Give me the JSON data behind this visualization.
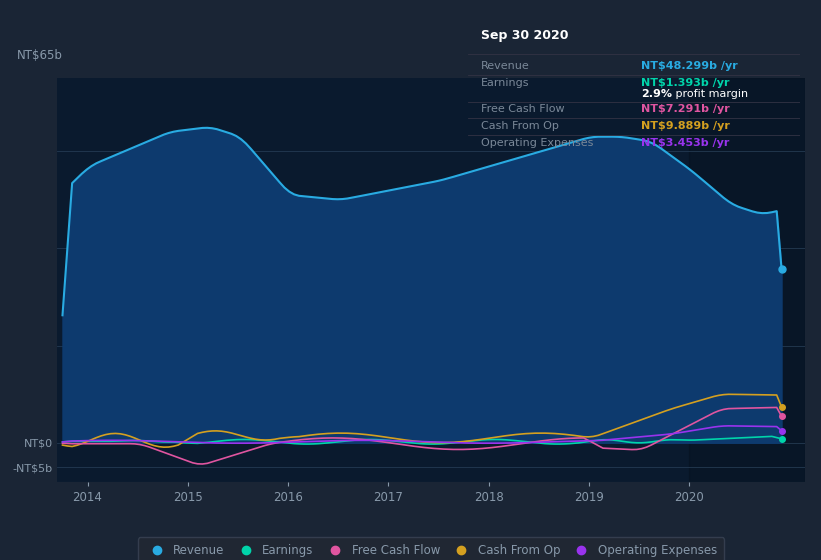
{
  "bg_color": "#1a2535",
  "plot_bg_color": "#0d1f35",
  "plot_bg_color2": "#0a1a2e",
  "grid_color": "#243a52",
  "text_color": "#8899aa",
  "xlim": [
    2013.7,
    2021.15
  ],
  "ylim": [
    -8,
    75
  ],
  "x_ticks": [
    2014,
    2015,
    2016,
    2017,
    2018,
    2019,
    2020
  ],
  "series_colors": {
    "revenue": "#29abe2",
    "revenue_fill": "#0d3a6e",
    "earnings": "#00d4aa",
    "free_cash_flow": "#e055a0",
    "cash_from_op": "#d4a020",
    "operating_expenses": "#9933ee"
  },
  "tooltip": {
    "title": "Sep 30 2020",
    "revenue_val": "NT$48.299b /yr",
    "earnings_val": "NT$1.393b /yr",
    "profit_margin": "2.9%",
    "fcf_val": "NT$7.291b /yr",
    "cash_op_val": "NT$9.889b /yr",
    "op_exp_val": "NT$3.453b /yr"
  }
}
